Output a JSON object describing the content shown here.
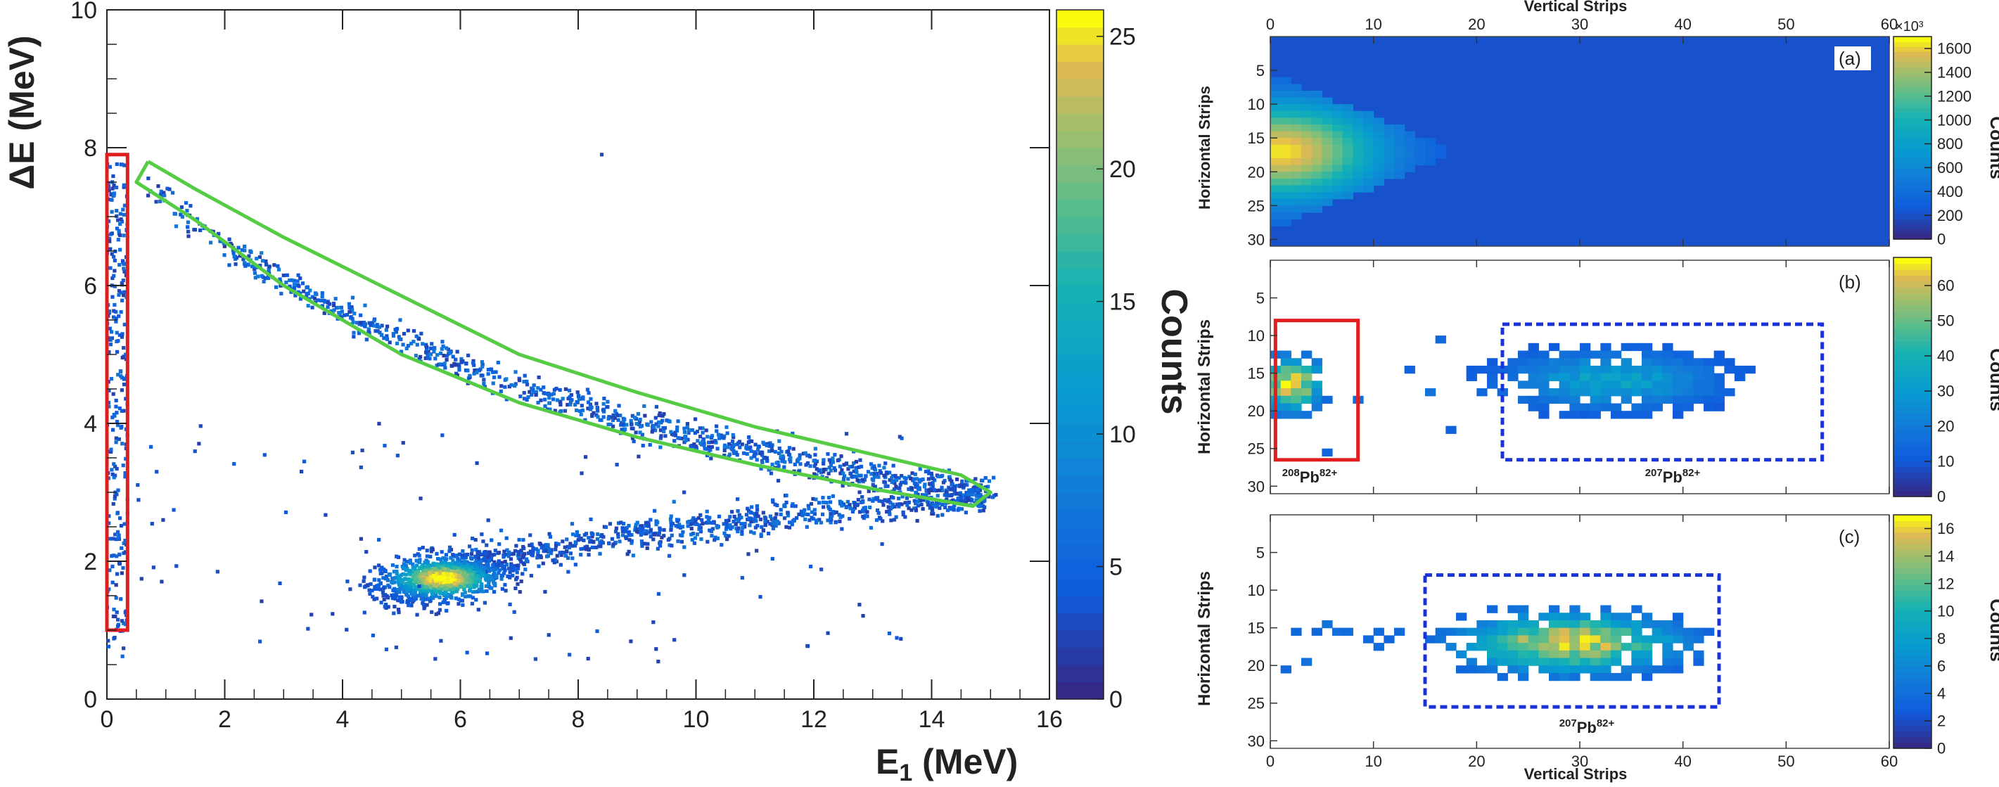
{
  "chart_data": [
    {
      "type": "heatmap",
      "panel": "left",
      "xlabel": "E1 (MeV)",
      "ylabel": "ΔE (MeV)",
      "xlim": [
        0,
        16
      ],
      "ylim": [
        0,
        10
      ],
      "x_ticks": [
        "0",
        "2",
        "4",
        "6",
        "8",
        "10",
        "12",
        "14",
        "16"
      ],
      "y_ticks": [
        "0",
        "2",
        "4",
        "6",
        "8",
        "10"
      ],
      "colorbar": {
        "label": "Counts",
        "range": [
          0,
          26
        ],
        "ticks": [
          "0",
          "5",
          "10",
          "15",
          "20",
          "25"
        ]
      },
      "bands": [
        {
          "x": [
            0.5,
            1,
            2,
            3,
            4,
            5,
            6,
            7,
            8,
            9,
            10,
            11,
            12,
            13,
            14,
            15
          ],
          "y": [
            7.6,
            7.2,
            6.6,
            6.05,
            5.6,
            5.2,
            4.85,
            4.55,
            4.25,
            4.0,
            3.8,
            3.6,
            3.4,
            3.25,
            3.1,
            2.95
          ]
        },
        {
          "x": [
            6,
            7,
            8,
            9,
            10,
            11,
            12,
            13,
            14,
            15
          ],
          "y": [
            1.9,
            2.1,
            2.25,
            2.4,
            2.5,
            2.6,
            2.7,
            2.8,
            2.85,
            2.95
          ]
        }
      ],
      "cluster": {
        "center": [
          5.7,
          1.75
        ],
        "peak_counts": 26
      },
      "regions": [
        {
          "name": "red-rectangle",
          "x": [
            0,
            0.35
          ],
          "y": [
            1.0,
            7.9
          ],
          "color": "#e11d1d"
        },
        {
          "name": "green-contour",
          "color": "#55cc44",
          "x": [
            0.7,
            1.5,
            3,
            5,
            7,
            9,
            11,
            13,
            14.5,
            15.0,
            14.7,
            13,
            11,
            9,
            7,
            5,
            3,
            1.5,
            0.5,
            0.7
          ],
          "y": [
            7.8,
            7.4,
            6.7,
            5.85,
            5.0,
            4.45,
            3.95,
            3.55,
            3.25,
            3.0,
            2.8,
            3.05,
            3.4,
            3.8,
            4.3,
            5.0,
            6.0,
            6.95,
            7.5,
            7.8
          ]
        }
      ]
    },
    {
      "type": "heatmap",
      "panel": "a",
      "panel_label": "(a)",
      "top_axis_label": "Vertical Strips",
      "ylabel": "Horizontal Strips",
      "xlim": [
        0,
        60
      ],
      "ylim": [
        0,
        31
      ],
      "x_ticks": [
        "0",
        "10",
        "20",
        "30",
        "40",
        "50",
        "60"
      ],
      "y_ticks": [
        "5",
        "10",
        "15",
        "20",
        "25",
        "30"
      ],
      "colorbar": {
        "label": "Counts",
        "multiplier": "×10³",
        "range": [
          0,
          1700
        ],
        "ticks": [
          "0",
          "200",
          "400",
          "600",
          "800",
          "1000",
          "1200",
          "1400",
          "1600"
        ]
      },
      "hotspot": {
        "x": 1,
        "y": 17,
        "peak": 1650,
        "extent_x": 17,
        "extent_y": 11
      }
    },
    {
      "type": "heatmap",
      "panel": "b",
      "panel_label": "(b)",
      "ylabel": "Horizontal Strips",
      "xlim": [
        0,
        60
      ],
      "ylim": [
        0,
        31
      ],
      "x_ticks": [
        "0",
        "10",
        "20",
        "30",
        "40",
        "50",
        "60"
      ],
      "y_ticks": [
        "5",
        "10",
        "15",
        "20",
        "25",
        "30"
      ],
      "colorbar": {
        "label": "Counts",
        "range": [
          0,
          68
        ],
        "ticks": [
          "0",
          "10",
          "20",
          "30",
          "40",
          "50",
          "60"
        ]
      },
      "clusters": [
        {
          "center": [
            2,
            16.5
          ],
          "peak": 65,
          "label": "208",
          "charge": "82+",
          "box_x": [
            0.5,
            8.5
          ],
          "box_y": [
            8,
            26.5
          ],
          "box_color": "#e11d1d",
          "box_style": "solid"
        },
        {
          "center": [
            33,
            16
          ],
          "peak": 30,
          "label": "207",
          "charge": "82+",
          "box_x": [
            22.5,
            53.5
          ],
          "box_y": [
            8.5,
            26.5
          ],
          "box_color": "#1a33d6",
          "box_style": "dashed"
        }
      ]
    },
    {
      "type": "heatmap",
      "panel": "c",
      "panel_label": "(c)",
      "ylabel": "Horizontal Strips",
      "xlabel": "Vertical Strips",
      "xlim": [
        0,
        60
      ],
      "ylim": [
        0,
        31
      ],
      "x_ticks": [
        "0",
        "10",
        "20",
        "30",
        "40",
        "50",
        "60"
      ],
      "y_ticks": [
        "5",
        "10",
        "15",
        "20",
        "25",
        "30"
      ],
      "colorbar": {
        "label": "Counts",
        "range": [
          0,
          17
        ],
        "ticks": [
          "0",
          "2",
          "4",
          "6",
          "8",
          "10",
          "12",
          "14",
          "16"
        ]
      },
      "clusters": [
        {
          "center": [
            29,
            17
          ],
          "peak": 16,
          "label": "207",
          "charge": "82+",
          "box_x": [
            15,
            43.5
          ],
          "box_y": [
            8,
            25.5
          ],
          "box_color": "#1a33d6",
          "box_style": "dashed"
        }
      ]
    }
  ],
  "labels": {
    "left_x": "E",
    "left_x_sub": "1",
    "left_x_unit": " (MeV)",
    "left_y": "ΔE (MeV)",
    "counts_rotated": "Counts",
    "top_axis": "Vertical Strips",
    "bottom_axis": "Vertical Strips",
    "h_strips": "Horizontal Strips",
    "counts": "Counts",
    "multiplier": "×10³",
    "panel_a": "(a)",
    "panel_b": "(b)",
    "panel_c": "(c)",
    "pb": "Pb",
    "iso_208": "208",
    "iso_207": "207",
    "charge": "82+"
  }
}
